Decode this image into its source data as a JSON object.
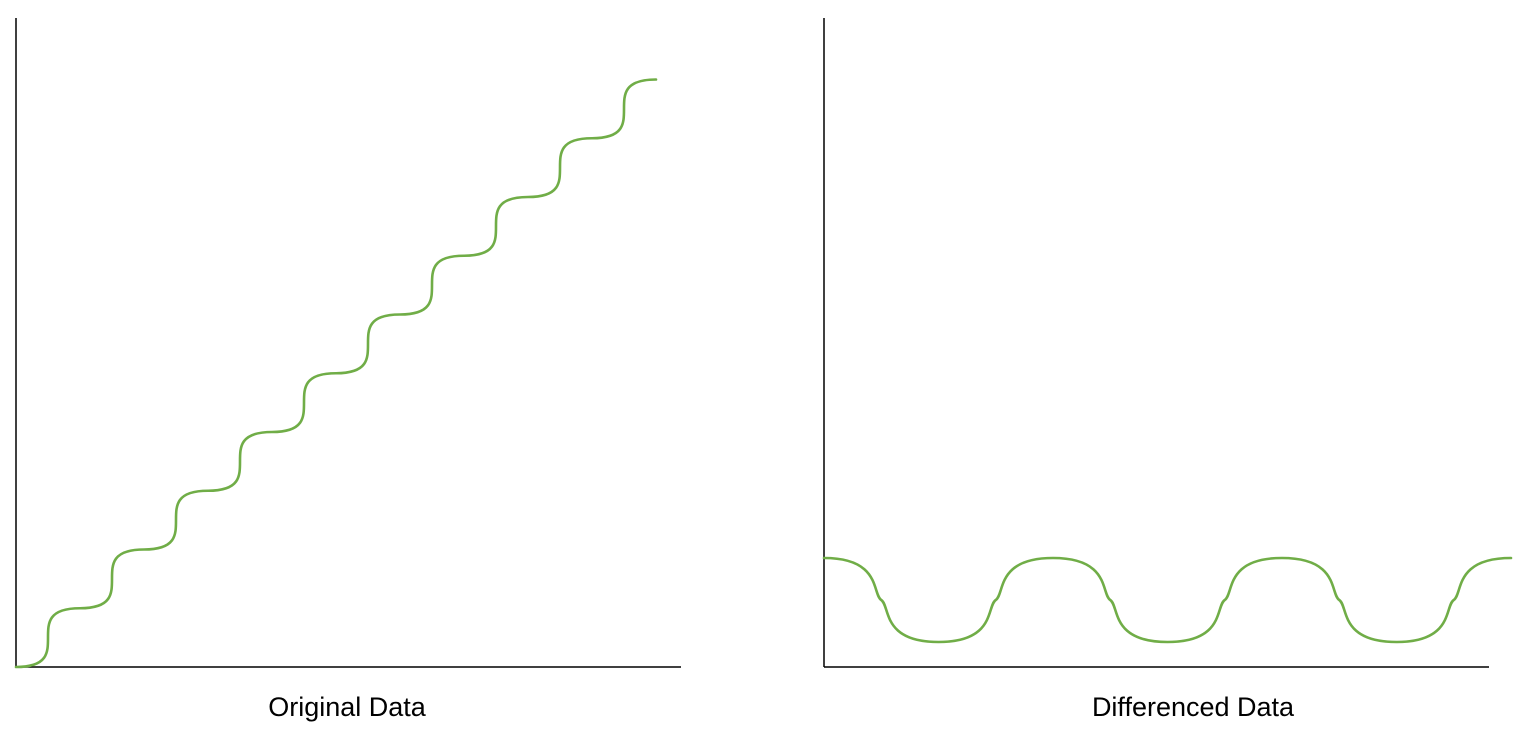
{
  "colors": {
    "line": "#70ad47",
    "axis": "#000000",
    "background": "#ffffff"
  },
  "chart_data": [
    {
      "type": "line",
      "title": "Original Data",
      "xlabel": "",
      "ylabel": "",
      "grid": false,
      "x": [
        0,
        0.5,
        1,
        1.5,
        2,
        2.5,
        3,
        3.5,
        4,
        4.5,
        5
      ],
      "series": [
        {
          "values": [
            0,
            0.5,
            1,
            1.5,
            2,
            2.5,
            3,
            3.5,
            4,
            4.5,
            5
          ],
          "curve": "rounded-steps"
        }
      ]
    },
    {
      "type": "line",
      "title": "Differenced Data",
      "xlabel": "",
      "ylabel": "",
      "grid": false,
      "x": [
        0,
        0.5,
        1,
        1.5,
        2,
        2.5,
        3
      ],
      "series": [
        {
          "values": [
            1,
            0,
            1,
            0,
            1,
            0,
            1
          ],
          "curve": "smooth-wave"
        }
      ]
    }
  ]
}
